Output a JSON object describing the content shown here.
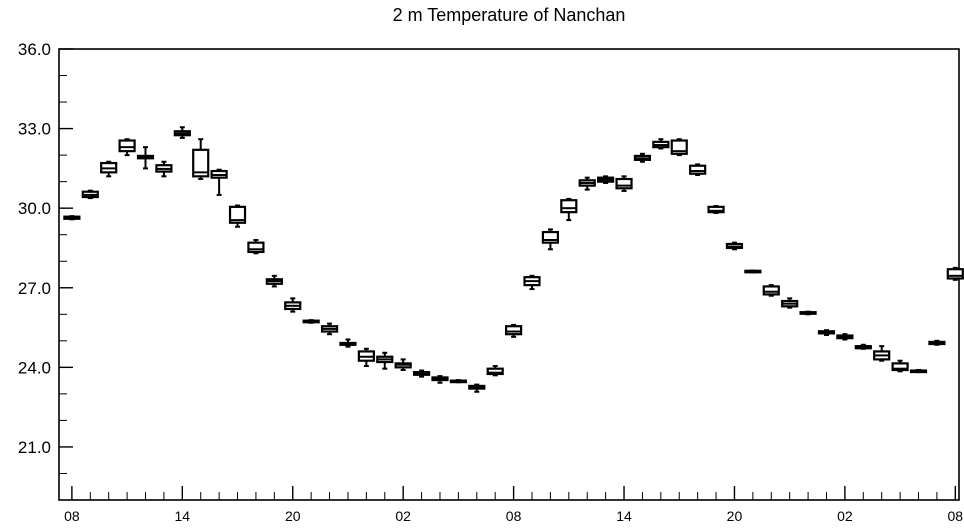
{
  "chart_data": {
    "type": "boxplot",
    "title": "2 m Temperature of Nanchan",
    "xlabel": "",
    "ylabel": "",
    "ylim": [
      19.0,
      36.0
    ],
    "yticks": [
      21.0,
      24.0,
      27.0,
      30.0,
      33.0,
      36.0
    ],
    "ytick_labels": [
      "21.0",
      "24.0",
      "27.0",
      "30.0",
      "33.0",
      "36.0"
    ],
    "xlim": [
      -0.7,
      48.2
    ],
    "xticks": [
      0,
      6,
      12,
      18,
      24,
      30,
      36,
      42,
      48
    ],
    "xtick_labels": [
      "08",
      "14",
      "20",
      "02",
      "08",
      "14",
      "20",
      "02",
      "08"
    ],
    "grid": false,
    "legend": "none",
    "boxes": [
      {
        "x": 0,
        "min": 29.58,
        "q1": 29.6,
        "median": 29.64,
        "q3": 29.68,
        "max": 29.7
      },
      {
        "x": 1,
        "min": 30.38,
        "q1": 30.42,
        "median": 30.5,
        "q3": 30.62,
        "max": 30.66
      },
      {
        "x": 2,
        "min": 31.2,
        "q1": 31.35,
        "median": 31.5,
        "q3": 31.7,
        "max": 31.75
      },
      {
        "x": 3,
        "min": 32.0,
        "q1": 32.15,
        "median": 32.3,
        "q3": 32.55,
        "max": 32.6
      },
      {
        "x": 4,
        "min": 31.5,
        "q1": 31.88,
        "median": 31.92,
        "q3": 31.97,
        "max": 32.3
      },
      {
        "x": 5,
        "min": 31.2,
        "q1": 31.38,
        "median": 31.48,
        "q3": 31.62,
        "max": 31.75
      },
      {
        "x": 6,
        "min": 32.65,
        "q1": 32.75,
        "median": 32.82,
        "q3": 32.9,
        "max": 33.05
      },
      {
        "x": 7,
        "min": 31.1,
        "q1": 31.2,
        "median": 31.35,
        "q3": 32.2,
        "max": 32.6
      },
      {
        "x": 8,
        "min": 30.5,
        "q1": 31.15,
        "median": 31.25,
        "q3": 31.4,
        "max": 31.45
      },
      {
        "x": 9,
        "min": 29.3,
        "q1": 29.45,
        "median": 29.55,
        "q3": 30.05,
        "max": 30.1
      },
      {
        "x": 10,
        "min": 28.3,
        "q1": 28.35,
        "median": 28.45,
        "q3": 28.7,
        "max": 28.8
      },
      {
        "x": 11,
        "min": 27.05,
        "q1": 27.15,
        "median": 27.25,
        "q3": 27.32,
        "max": 27.45
      },
      {
        "x": 12,
        "min": 26.1,
        "q1": 26.2,
        "median": 26.32,
        "q3": 26.45,
        "max": 26.6
      },
      {
        "x": 13,
        "min": 25.68,
        "q1": 25.7,
        "median": 25.73,
        "q3": 25.76,
        "max": 25.78
      },
      {
        "x": 14,
        "min": 25.25,
        "q1": 25.35,
        "median": 25.45,
        "q3": 25.55,
        "max": 25.65
      },
      {
        "x": 15,
        "min": 24.78,
        "q1": 24.85,
        "median": 24.88,
        "q3": 24.92,
        "max": 25.05
      },
      {
        "x": 16,
        "min": 24.05,
        "q1": 24.25,
        "median": 24.4,
        "q3": 24.6,
        "max": 24.7
      },
      {
        "x": 17,
        "min": 23.95,
        "q1": 24.2,
        "median": 24.3,
        "q3": 24.4,
        "max": 24.55
      },
      {
        "x": 18,
        "min": 23.9,
        "q1": 24.0,
        "median": 24.1,
        "q3": 24.15,
        "max": 24.3
      },
      {
        "x": 19,
        "min": 23.65,
        "q1": 23.72,
        "median": 23.78,
        "q3": 23.82,
        "max": 23.88
      },
      {
        "x": 20,
        "min": 23.42,
        "q1": 23.52,
        "median": 23.57,
        "q3": 23.62,
        "max": 23.67
      },
      {
        "x": 21,
        "min": 23.44,
        "q1": 23.46,
        "median": 23.48,
        "q3": 23.5,
        "max": 23.52
      },
      {
        "x": 22,
        "min": 23.08,
        "q1": 23.2,
        "median": 23.26,
        "q3": 23.3,
        "max": 23.35
      },
      {
        "x": 23,
        "min": 23.7,
        "q1": 23.75,
        "median": 23.8,
        "q3": 23.95,
        "max": 24.05
      },
      {
        "x": 24,
        "min": 25.15,
        "q1": 25.25,
        "median": 25.35,
        "q3": 25.55,
        "max": 25.6
      },
      {
        "x": 25,
        "min": 26.95,
        "q1": 27.1,
        "median": 27.25,
        "q3": 27.4,
        "max": 27.45
      },
      {
        "x": 26,
        "min": 28.45,
        "q1": 28.7,
        "median": 28.8,
        "q3": 29.1,
        "max": 29.2
      },
      {
        "x": 27,
        "min": 29.55,
        "q1": 29.85,
        "median": 30.0,
        "q3": 30.3,
        "max": 30.35
      },
      {
        "x": 28,
        "min": 30.7,
        "q1": 30.85,
        "median": 30.95,
        "q3": 31.05,
        "max": 31.15
      },
      {
        "x": 29,
        "min": 30.95,
        "q1": 31.0,
        "median": 31.08,
        "q3": 31.15,
        "max": 31.2
      },
      {
        "x": 30,
        "min": 30.65,
        "q1": 30.75,
        "median": 30.85,
        "q3": 31.1,
        "max": 31.2
      },
      {
        "x": 31,
        "min": 31.75,
        "q1": 31.82,
        "median": 31.88,
        "q3": 31.97,
        "max": 32.05
      },
      {
        "x": 32,
        "min": 32.25,
        "q1": 32.3,
        "median": 32.38,
        "q3": 32.5,
        "max": 32.6
      },
      {
        "x": 33,
        "min": 32.0,
        "q1": 32.05,
        "median": 32.15,
        "q3": 32.55,
        "max": 32.6
      },
      {
        "x": 34,
        "min": 31.25,
        "q1": 31.3,
        "median": 31.4,
        "q3": 31.6,
        "max": 31.65
      },
      {
        "x": 35,
        "min": 29.82,
        "q1": 29.85,
        "median": 29.9,
        "q3": 30.05,
        "max": 30.08
      },
      {
        "x": 36,
        "min": 28.45,
        "q1": 28.5,
        "median": 28.55,
        "q3": 28.65,
        "max": 28.7
      },
      {
        "x": 37,
        "min": 27.58,
        "q1": 27.6,
        "median": 27.62,
        "q3": 27.64,
        "max": 27.65
      },
      {
        "x": 38,
        "min": 26.7,
        "q1": 26.75,
        "median": 26.85,
        "q3": 27.05,
        "max": 27.1
      },
      {
        "x": 39,
        "min": 26.25,
        "q1": 26.3,
        "median": 26.4,
        "q3": 26.5,
        "max": 26.6
      },
      {
        "x": 40,
        "min": 26.0,
        "q1": 26.02,
        "median": 26.05,
        "q3": 26.08,
        "max": 26.1
      },
      {
        "x": 41,
        "min": 25.22,
        "q1": 25.28,
        "median": 25.32,
        "q3": 25.36,
        "max": 25.4
      },
      {
        "x": 42,
        "min": 25.05,
        "q1": 25.1,
        "median": 25.15,
        "q3": 25.2,
        "max": 25.25
      },
      {
        "x": 43,
        "min": 24.7,
        "q1": 24.72,
        "median": 24.76,
        "q3": 24.8,
        "max": 24.85
      },
      {
        "x": 44,
        "min": 24.25,
        "q1": 24.3,
        "median": 24.45,
        "q3": 24.6,
        "max": 24.8
      },
      {
        "x": 45,
        "min": 23.85,
        "q1": 23.9,
        "median": 23.95,
        "q3": 24.15,
        "max": 24.25
      },
      {
        "x": 46,
        "min": 23.82,
        "q1": 23.84,
        "median": 23.86,
        "q3": 23.88,
        "max": 23.9
      },
      {
        "x": 47,
        "min": 24.85,
        "q1": 24.88,
        "median": 24.92,
        "q3": 24.96,
        "max": 25.0
      },
      {
        "x": 48,
        "min": 27.3,
        "q1": 27.35,
        "median": 27.45,
        "q3": 27.7,
        "max": 27.75
      }
    ]
  }
}
